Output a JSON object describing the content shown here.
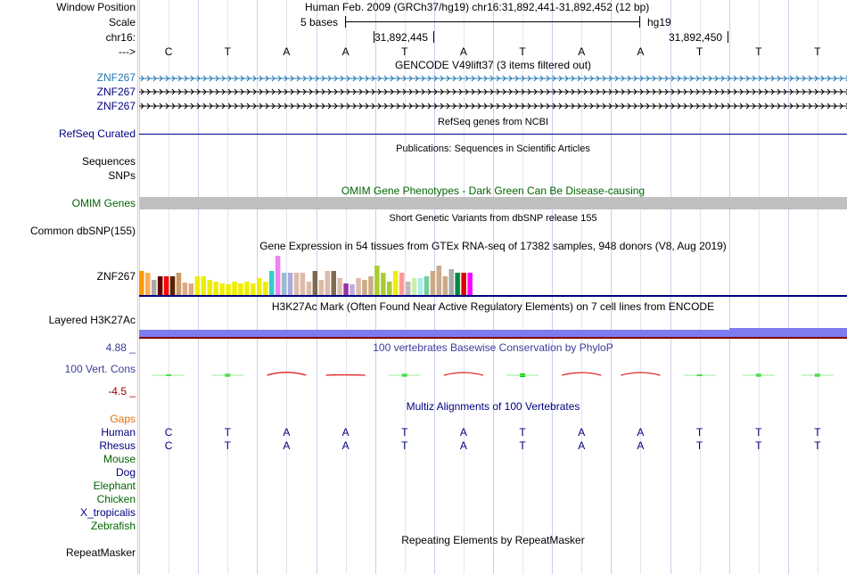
{
  "labels": {
    "window_position": "Window Position",
    "scale": "Scale",
    "chrom": "chr16:",
    "strand": "--->",
    "znf267_a": "ZNF267",
    "znf267_b": "ZNF267",
    "znf267_c": "ZNF267",
    "refseq": "RefSeq Curated",
    "sequences": "Sequences",
    "snps": "SNPs",
    "omim": "OMIM Genes",
    "dbsnp": "Common dbSNP(155)",
    "gtex": "ZNF267",
    "h3k27ac": "Layered H3K27Ac",
    "phylop_max": "4.88 _",
    "phylop_name": "100 Vert. Cons",
    "phylop_min": "-4.5 _",
    "gaps": "Gaps",
    "repeatmasker": "RepeatMasker"
  },
  "species": [
    {
      "name": "Human",
      "color": "#000080"
    },
    {
      "name": "Rhesus",
      "color": "#000080"
    },
    {
      "name": "Mouse",
      "color": "#006400"
    },
    {
      "name": "Dog",
      "color": "#000080"
    },
    {
      "name": "Elephant",
      "color": "#006400"
    },
    {
      "name": "Chicken",
      "color": "#006400"
    },
    {
      "name": "X_tropicalis",
      "color": "#000080"
    },
    {
      "name": "Zebrafish",
      "color": "#006400"
    }
  ],
  "header": {
    "assembly_position": "Human Feb. 2009 (GRCh37/hg19)   chr16:31,892,441-31,892,452 (12 bp)",
    "scale_text": "5 bases",
    "scale_db": "hg19",
    "coord_1": "31,892,445",
    "coord_2": "31,892,450"
  },
  "bases": [
    "C",
    "T",
    "A",
    "A",
    "T",
    "A",
    "T",
    "A",
    "A",
    "T",
    "T",
    "T"
  ],
  "human_bases": [
    "C",
    "T",
    "A",
    "A",
    "T",
    "A",
    "T",
    "A",
    "A",
    "T",
    "T",
    "T"
  ],
  "rhesus_bases": [
    "C",
    "T",
    "A",
    "A",
    "T",
    "A",
    "T",
    "A",
    "A",
    "T",
    "T",
    "T"
  ],
  "tracks": {
    "gencode": "GENCODE V49lift37 (3 items filtered out)",
    "refseq": "RefSeq genes from NCBI",
    "publications": "Publications: Sequences in Scientific Articles",
    "omim": "OMIM Gene Phenotypes - Dark Green Can Be Disease-causing",
    "dbsnp": "Short Genetic Variants from dbSNP release 155",
    "gtex": "Gene Expression in 54 tissues from GTEx RNA-seq of 17382 samples, 948 donors (V8, Aug 2019)",
    "h3k27ac": "H3K27Ac Mark (Often Found Near Active Regulatory Elements) on 7 cell lines from ENCODE",
    "phylop": "100 vertebrates Basewise Conservation by PhyloP",
    "multiz": "Multiz Alignments of 100 Vertebrates",
    "repeatmasker": "Repeating Elements by RepeatMasker"
  },
  "colors": {
    "label_blue": "#000080",
    "gencode_teal": "#1f78b4",
    "omim_green": "#006400",
    "gaps_orange": "#e07000",
    "phylop_blue": "#3c3c9c",
    "phylop_red": "#a00000",
    "h3k27ac": "#7c7cf0",
    "omim_bar": "#c0c0c0"
  },
  "gtex_bars": [
    {
      "value": 28,
      "color": "#ff9900"
    },
    {
      "value": 26,
      "color": "#ffaa55"
    },
    {
      "value": 18,
      "color": "#aaaaaa"
    },
    {
      "value": 22,
      "color": "#660000"
    },
    {
      "value": 22,
      "color": "#ff0000"
    },
    {
      "value": 22,
      "color": "#552200"
    },
    {
      "value": 26,
      "color": "#cc9966"
    },
    {
      "value": 15,
      "color": "#ddaa88"
    },
    {
      "value": 14,
      "color": "#ddaa88"
    },
    {
      "value": 22,
      "color": "#eeee00"
    },
    {
      "value": 22,
      "color": "#eeee00"
    },
    {
      "value": 18,
      "color": "#eeee00"
    },
    {
      "value": 16,
      "color": "#eeee00"
    },
    {
      "value": 14,
      "color": "#eeee00"
    },
    {
      "value": 13,
      "color": "#eeee00"
    },
    {
      "value": 16,
      "color": "#eeee00"
    },
    {
      "value": 14,
      "color": "#eeee00"
    },
    {
      "value": 16,
      "color": "#eeee00"
    },
    {
      "value": 14,
      "color": "#eeee00"
    },
    {
      "value": 20,
      "color": "#eeee00"
    },
    {
      "value": 16,
      "color": "#eeee00"
    },
    {
      "value": 28,
      "color": "#33cccc"
    },
    {
      "value": 46,
      "color": "#ee82ee"
    },
    {
      "value": 26,
      "color": "#99bbcc"
    },
    {
      "value": 26,
      "color": "#aaaadd"
    },
    {
      "value": 26,
      "color": "#ddbbaa"
    },
    {
      "value": 26,
      "color": "#ddbbaa"
    },
    {
      "value": 16,
      "color": "#ddbbaa"
    },
    {
      "value": 28,
      "color": "#7f6a4f"
    },
    {
      "value": 18,
      "color": "#ddbbaa"
    },
    {
      "value": 28,
      "color": "#ddbbaa"
    },
    {
      "value": 28,
      "color": "#7f6a4f"
    },
    {
      "value": 20,
      "color": "#ddbbaa"
    },
    {
      "value": 14,
      "color": "#9933aa"
    },
    {
      "value": 12,
      "color": "#bbaadd"
    },
    {
      "value": 20,
      "color": "#ddbbaa"
    },
    {
      "value": 18,
      "color": "#ccaa88"
    },
    {
      "value": 22,
      "color": "#ccaa88"
    },
    {
      "value": 34,
      "color": "#aacc33"
    },
    {
      "value": 26,
      "color": "#aacc33"
    },
    {
      "value": 16,
      "color": "#aacc33"
    },
    {
      "value": 28,
      "color": "#eeee00"
    },
    {
      "value": 26,
      "color": "#ff9999"
    },
    {
      "value": 16,
      "color": "#bbbbbb"
    },
    {
      "value": 20,
      "color": "#cceeaa"
    },
    {
      "value": 20,
      "color": "#aaeeee"
    },
    {
      "value": 22,
      "color": "#77cc99"
    },
    {
      "value": 28,
      "color": "#ccaa88"
    },
    {
      "value": 34,
      "color": "#ccaa88"
    },
    {
      "value": 22,
      "color": "#ccaa88"
    },
    {
      "value": 30,
      "color": "#aaaaaa"
    },
    {
      "value": 26,
      "color": "#008844"
    },
    {
      "value": 26,
      "color": "#dd0000"
    },
    {
      "value": 26,
      "color": "#ff00ff"
    }
  ],
  "phylop": [
    {
      "kind": "pos",
      "value": 0.4
    },
    {
      "kind": "pos",
      "value": 1.5
    },
    {
      "kind": "neg",
      "value": 2.2
    },
    {
      "kind": "neg",
      "value": 0.3
    },
    {
      "kind": "pos",
      "value": 1.5
    },
    {
      "kind": "neg",
      "value": 2.0
    },
    {
      "kind": "pos",
      "value": 1.8
    },
    {
      "kind": "neg",
      "value": 2.0
    },
    {
      "kind": "neg",
      "value": 2.0
    },
    {
      "kind": "pos",
      "value": 0.4
    },
    {
      "kind": "pos",
      "value": 1.5
    },
    {
      "kind": "pos",
      "value": 1.5
    }
  ],
  "phylop_range": [
    -4.5,
    4.88
  ]
}
